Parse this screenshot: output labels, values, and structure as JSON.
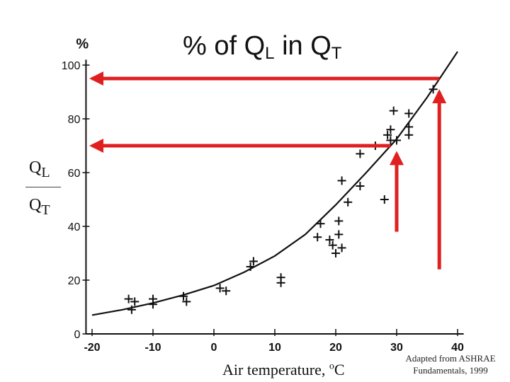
{
  "chart_data": {
    "type": "scatter",
    "title": "% of QL in QT",
    "title_parts": {
      "lead": "% of Q",
      "sub1": "L",
      "mid": " in Q",
      "sub2": "T"
    },
    "ylabel_ratio": {
      "num_main": "Q",
      "num_sub": "L",
      "den_main": "Q",
      "den_sub": "T"
    },
    "ylabel_unit": "%",
    "xlabel": "Air temperature, °C",
    "xlabel_parts": {
      "text": "Air temperature, ",
      "sup": "o",
      "tail": "C"
    },
    "credit": [
      "Adapted from ASHRAE",
      "Fundamentals, 1999"
    ],
    "x_ticks": [
      -20,
      -10,
      0,
      10,
      20,
      30,
      40
    ],
    "y_ticks": [
      0,
      20,
      40,
      60,
      80,
      100
    ],
    "x_tick_labels": [
      "-20",
      "-10",
      "0",
      "10",
      "20",
      "30",
      "40"
    ],
    "y_tick_labels": [
      "0",
      "20",
      "40",
      "60",
      "80",
      "100"
    ],
    "xlim": [
      -21,
      41
    ],
    "ylim": [
      0,
      102
    ],
    "grid": false,
    "points": [
      {
        "x": -14,
        "y": 13
      },
      {
        "x": -13.5,
        "y": 9
      },
      {
        "x": -13,
        "y": 12
      },
      {
        "x": -10,
        "y": 13
      },
      {
        "x": -10,
        "y": 11
      },
      {
        "x": -5,
        "y": 14
      },
      {
        "x": -4.5,
        "y": 12
      },
      {
        "x": 1,
        "y": 17
      },
      {
        "x": 2,
        "y": 16
      },
      {
        "x": 6,
        "y": 25
      },
      {
        "x": 6.5,
        "y": 27
      },
      {
        "x": 11,
        "y": 21
      },
      {
        "x": 11,
        "y": 19
      },
      {
        "x": 17,
        "y": 36
      },
      {
        "x": 17.5,
        "y": 41
      },
      {
        "x": 19,
        "y": 35
      },
      {
        "x": 19.5,
        "y": 33
      },
      {
        "x": 20,
        "y": 30
      },
      {
        "x": 20.5,
        "y": 37
      },
      {
        "x": 20.5,
        "y": 42
      },
      {
        "x": 21,
        "y": 32
      },
      {
        "x": 21,
        "y": 57
      },
      {
        "x": 22,
        "y": 49
      },
      {
        "x": 24,
        "y": 55
      },
      {
        "x": 24,
        "y": 67
      },
      {
        "x": 26.5,
        "y": 70
      },
      {
        "x": 28,
        "y": 50
      },
      {
        "x": 28.5,
        "y": 74
      },
      {
        "x": 29,
        "y": 72
      },
      {
        "x": 29,
        "y": 76
      },
      {
        "x": 29.5,
        "y": 83
      },
      {
        "x": 30,
        "y": 72
      },
      {
        "x": 32,
        "y": 77
      },
      {
        "x": 32,
        "y": 82
      },
      {
        "x": 32,
        "y": 74
      },
      {
        "x": 36,
        "y": 91
      }
    ],
    "fit_curve": [
      [
        -20,
        7
      ],
      [
        -15,
        9
      ],
      [
        -10,
        11.5
      ],
      [
        -5,
        14.5
      ],
      [
        0,
        18
      ],
      [
        5,
        23
      ],
      [
        10,
        29
      ],
      [
        15,
        37
      ],
      [
        20,
        48
      ],
      [
        25,
        60
      ],
      [
        30,
        72.5
      ],
      [
        35,
        88
      ],
      [
        40,
        108
      ]
    ],
    "annotation_color": "#e02020",
    "annotations": [
      {
        "kind": "vertical-arrow",
        "x": 30,
        "from_y": 38,
        "to_y": 67
      },
      {
        "kind": "horizontal-arrow",
        "y": 70,
        "from_x": 29,
        "to_x": -20
      },
      {
        "kind": "vertical-arrow",
        "x": 37,
        "from_y": 24,
        "to_y": 90
      },
      {
        "kind": "horizontal-arrow",
        "y": 95,
        "from_x": 37,
        "to_x": -20
      }
    ]
  }
}
